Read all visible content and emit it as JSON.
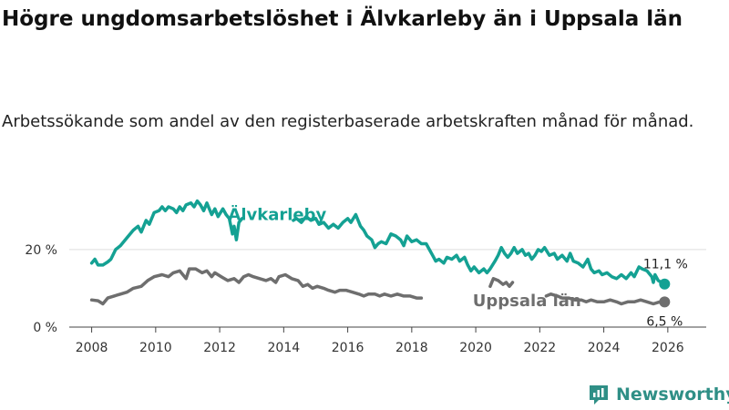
{
  "brand": {
    "name": "Newsworthy",
    "color": "#2f8f86"
  },
  "colors": {
    "alvkarleby": "#14a193",
    "uppsala": "#6e6e6e",
    "grid": "#dddddd",
    "axis": "#444444"
  },
  "chart_data": {
    "type": "line",
    "title": "Högre ungdomsarbetslöshet i Älvkarleby än i Uppsala län",
    "subtitle": "Arbetssökande som andel av den registerbaserade arbetskraften månad för månad.",
    "xlabel": "",
    "ylabel": "",
    "xlim": [
      2007.3,
      2027.2
    ],
    "ylim": [
      0,
      35
    ],
    "y_ticks": [
      {
        "value": 0,
        "label": "0 %"
      },
      {
        "value": 20,
        "label": "20 %"
      }
    ],
    "x_ticks": [
      {
        "value": 2008,
        "label": "2008"
      },
      {
        "value": 2010,
        "label": "2010"
      },
      {
        "value": 2012,
        "label": "2012"
      },
      {
        "value": 2014,
        "label": "2014"
      },
      {
        "value": 2016,
        "label": "2016"
      },
      {
        "value": 2018,
        "label": "2018"
      },
      {
        "value": 2020,
        "label": "2020"
      },
      {
        "value": 2022,
        "label": "2022"
      },
      {
        "value": 2024,
        "label": "2024"
      },
      {
        "value": 2026,
        "label": "2026"
      }
    ],
    "series": [
      {
        "name": "Älvkarleby",
        "label_at": [
          2013.8,
          29
        ],
        "end_label": "11,1 %",
        "end_value": [
          2025.9,
          11.1
        ],
        "points": [
          [
            2008.0,
            16.5
          ],
          [
            2008.1,
            17.5
          ],
          [
            2008.2,
            16.0
          ],
          [
            2008.35,
            16.0
          ],
          [
            2008.5,
            16.8
          ],
          [
            2008.6,
            17.5
          ],
          [
            2008.75,
            20.0
          ],
          [
            2008.9,
            21.0
          ],
          [
            2009.1,
            23.0
          ],
          [
            2009.3,
            25.0
          ],
          [
            2009.45,
            26.0
          ],
          [
            2009.55,
            24.5
          ],
          [
            2009.7,
            27.5
          ],
          [
            2009.8,
            26.5
          ],
          [
            2009.95,
            29.5
          ],
          [
            2010.1,
            30.0
          ],
          [
            2010.2,
            31.0
          ],
          [
            2010.3,
            30.0
          ],
          [
            2010.4,
            31.0
          ],
          [
            2010.55,
            30.5
          ],
          [
            2010.65,
            29.5
          ],
          [
            2010.75,
            31.0
          ],
          [
            2010.85,
            30.0
          ],
          [
            2010.95,
            31.5
          ],
          [
            2011.1,
            32.0
          ],
          [
            2011.2,
            31.0
          ],
          [
            2011.3,
            32.5
          ],
          [
            2011.4,
            31.5
          ],
          [
            2011.5,
            30.0
          ],
          [
            2011.6,
            32.0
          ],
          [
            2011.75,
            29.0
          ],
          [
            2011.85,
            30.5
          ],
          [
            2011.95,
            28.5
          ],
          [
            2012.1,
            30.5
          ],
          [
            2012.2,
            29.0
          ],
          [
            2012.3,
            28.0
          ],
          [
            2012.4,
            24.0
          ],
          [
            2012.45,
            26.0
          ],
          [
            2012.52,
            22.5
          ],
          [
            2012.6,
            27.0
          ],
          [
            2012.7,
            28.0
          ]
        ]
      },
      {
        "name": "Älvkarleby",
        "points": [
          [
            2014.3,
            27.5
          ],
          [
            2014.4,
            28.0
          ],
          [
            2014.55,
            27.0
          ],
          [
            2014.7,
            28.5
          ],
          [
            2014.85,
            27.5
          ],
          [
            2015.0,
            28.0
          ],
          [
            2015.1,
            26.5
          ],
          [
            2015.25,
            27.0
          ],
          [
            2015.4,
            25.5
          ],
          [
            2015.55,
            26.5
          ],
          [
            2015.7,
            25.5
          ],
          [
            2015.85,
            27.0
          ],
          [
            2016.0,
            28.0
          ],
          [
            2016.1,
            27.0
          ],
          [
            2016.25,
            29.0
          ],
          [
            2016.4,
            26.0
          ],
          [
            2016.5,
            25.0
          ],
          [
            2016.6,
            23.5
          ],
          [
            2016.75,
            22.5
          ],
          [
            2016.85,
            20.5
          ],
          [
            2016.95,
            21.5
          ],
          [
            2017.05,
            22.0
          ],
          [
            2017.2,
            21.5
          ],
          [
            2017.35,
            24.0
          ],
          [
            2017.5,
            23.5
          ],
          [
            2017.65,
            22.5
          ],
          [
            2017.75,
            21.0
          ],
          [
            2017.85,
            23.5
          ],
          [
            2018.0,
            22.0
          ],
          [
            2018.15,
            22.5
          ],
          [
            2018.3,
            21.5
          ],
          [
            2018.45,
            21.5
          ],
          [
            2018.55,
            20.0
          ],
          [
            2018.65,
            18.5
          ],
          [
            2018.75,
            17.0
          ],
          [
            2018.85,
            17.5
          ],
          [
            2019.0,
            16.5
          ],
          [
            2019.1,
            18.0
          ],
          [
            2019.25,
            17.5
          ],
          [
            2019.4,
            18.5
          ],
          [
            2019.5,
            17.0
          ],
          [
            2019.65,
            18.0
          ],
          [
            2019.75,
            16.0
          ],
          [
            2019.85,
            14.5
          ],
          [
            2019.95,
            15.5
          ],
          [
            2020.1,
            14.0
          ],
          [
            2020.25,
            15.0
          ],
          [
            2020.35,
            14.0
          ],
          [
            2020.45,
            15.0
          ],
          [
            2020.6,
            17.0
          ],
          [
            2020.7,
            18.5
          ],
          [
            2020.8,
            20.5
          ],
          [
            2020.9,
            19.0
          ],
          [
            2021.0,
            18.0
          ],
          [
            2021.1,
            19.0
          ],
          [
            2021.2,
            20.5
          ],
          [
            2021.3,
            19.0
          ],
          [
            2021.45,
            20.0
          ],
          [
            2021.55,
            18.5
          ],
          [
            2021.65,
            19.0
          ],
          [
            2021.75,
            17.5
          ],
          [
            2021.85,
            18.5
          ],
          [
            2021.95,
            20.0
          ],
          [
            2022.05,
            19.5
          ],
          [
            2022.15,
            20.5
          ],
          [
            2022.3,
            18.5
          ],
          [
            2022.45,
            19.0
          ],
          [
            2022.55,
            17.5
          ],
          [
            2022.7,
            18.5
          ],
          [
            2022.85,
            17.0
          ],
          [
            2022.95,
            19.0
          ],
          [
            2023.05,
            17.0
          ],
          [
            2023.2,
            16.5
          ],
          [
            2023.35,
            15.5
          ],
          [
            2023.5,
            17.5
          ],
          [
            2023.6,
            15.0
          ],
          [
            2023.7,
            14.0
          ],
          [
            2023.85,
            14.5
          ],
          [
            2023.95,
            13.5
          ],
          [
            2024.1,
            14.0
          ],
          [
            2024.25,
            13.0
          ],
          [
            2024.4,
            12.5
          ],
          [
            2024.55,
            13.5
          ],
          [
            2024.7,
            12.5
          ],
          [
            2024.85,
            14.0
          ],
          [
            2024.95,
            13.0
          ],
          [
            2025.1,
            15.5
          ],
          [
            2025.2,
            15.0
          ],
          [
            2025.35,
            14.5
          ],
          [
            2025.5,
            13.0
          ],
          [
            2025.55,
            11.5
          ],
          [
            2025.6,
            13.5
          ],
          [
            2025.7,
            12.0
          ],
          [
            2025.8,
            11.5
          ],
          [
            2025.9,
            11.1
          ]
        ]
      },
      {
        "name": "Uppsala län",
        "label_at": [
          2021.6,
          6.8
        ],
        "end_label": "6,5 %",
        "end_value": [
          2025.9,
          6.5
        ],
        "points": [
          [
            2008.0,
            7.0
          ],
          [
            2008.2,
            6.8
          ],
          [
            2008.35,
            6.0
          ],
          [
            2008.5,
            7.5
          ],
          [
            2008.7,
            8.0
          ],
          [
            2008.9,
            8.5
          ],
          [
            2009.1,
            9.0
          ],
          [
            2009.3,
            10.0
          ],
          [
            2009.55,
            10.5
          ],
          [
            2009.75,
            12.0
          ],
          [
            2009.95,
            13.0
          ],
          [
            2010.2,
            13.5
          ],
          [
            2010.4,
            13.0
          ],
          [
            2010.55,
            14.0
          ],
          [
            2010.75,
            14.5
          ],
          [
            2010.85,
            13.5
          ],
          [
            2010.95,
            12.5
          ],
          [
            2011.05,
            15.0
          ],
          [
            2011.25,
            15.0
          ],
          [
            2011.45,
            14.0
          ],
          [
            2011.6,
            14.5
          ],
          [
            2011.75,
            13.0
          ],
          [
            2011.85,
            14.0
          ],
          [
            2012.05,
            13.0
          ],
          [
            2012.25,
            12.0
          ],
          [
            2012.45,
            12.5
          ],
          [
            2012.6,
            11.5
          ],
          [
            2012.75,
            13.0
          ],
          [
            2012.9,
            13.5
          ],
          [
            2013.05,
            13.0
          ],
          [
            2013.25,
            12.5
          ],
          [
            2013.45,
            12.0
          ],
          [
            2013.6,
            12.5
          ],
          [
            2013.75,
            11.5
          ],
          [
            2013.85,
            13.0
          ],
          [
            2014.05,
            13.5
          ],
          [
            2014.25,
            12.5
          ],
          [
            2014.45,
            12.0
          ],
          [
            2014.6,
            10.5
          ],
          [
            2014.75,
            11.0
          ],
          [
            2014.9,
            10.0
          ],
          [
            2015.05,
            10.5
          ],
          [
            2015.25,
            10.0
          ],
          [
            2015.4,
            9.5
          ],
          [
            2015.6,
            9.0
          ],
          [
            2015.75,
            9.5
          ],
          [
            2015.95,
            9.5
          ],
          [
            2016.15,
            9.0
          ],
          [
            2016.35,
            8.5
          ],
          [
            2016.5,
            8.0
          ],
          [
            2016.65,
            8.5
          ],
          [
            2016.85,
            8.5
          ],
          [
            2017.0,
            8.0
          ],
          [
            2017.15,
            8.5
          ],
          [
            2017.35,
            8.0
          ],
          [
            2017.55,
            8.5
          ],
          [
            2017.75,
            8.0
          ],
          [
            2017.95,
            8.0
          ],
          [
            2018.15,
            7.5
          ],
          [
            2018.3,
            7.5
          ]
        ]
      },
      {
        "name": "Uppsala län",
        "points": [
          [
            2020.45,
            10.5
          ],
          [
            2020.55,
            12.5
          ],
          [
            2020.7,
            12.0
          ],
          [
            2020.85,
            11.0
          ],
          [
            2020.95,
            11.5
          ],
          [
            2021.05,
            10.5
          ],
          [
            2021.15,
            11.5
          ]
        ]
      },
      {
        "name": "Uppsala län",
        "points": [
          [
            2022.2,
            8.0
          ],
          [
            2022.35,
            8.5
          ],
          [
            2022.55,
            8.0
          ],
          [
            2022.7,
            7.5
          ],
          [
            2022.9,
            7.5
          ],
          [
            2023.1,
            7.0
          ],
          [
            2023.3,
            7.0
          ],
          [
            2023.45,
            6.5
          ],
          [
            2023.6,
            7.0
          ],
          [
            2023.8,
            6.5
          ],
          [
            2024.0,
            6.5
          ],
          [
            2024.2,
            7.0
          ],
          [
            2024.4,
            6.5
          ],
          [
            2024.55,
            6.0
          ],
          [
            2024.75,
            6.5
          ],
          [
            2024.95,
            6.5
          ],
          [
            2025.15,
            7.0
          ],
          [
            2025.35,
            6.5
          ],
          [
            2025.55,
            6.0
          ],
          [
            2025.75,
            6.5
          ],
          [
            2025.9,
            6.5
          ]
        ]
      }
    ],
    "labels": {
      "alvkarleby": "Älvkarleby",
      "uppsala": "Uppsala län",
      "alvkarleby_end": "11,1 %",
      "uppsala_end": "6,5 %"
    }
  }
}
